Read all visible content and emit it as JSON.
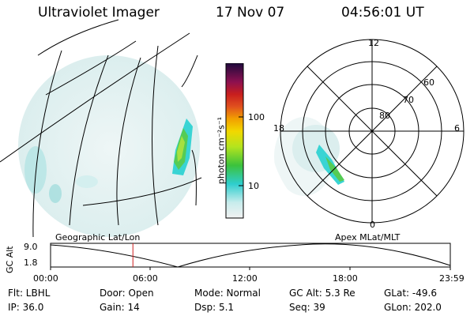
{
  "header": {
    "title": "Ultraviolet Imager",
    "date": "17 Nov 07",
    "time": "04:56:01 UT"
  },
  "colorbar": {
    "unit_label": "photon cm⁻²s⁻¹",
    "tick_100": "100",
    "tick_10": "10"
  },
  "polar": {
    "lat_labels": [
      "80",
      "70",
      "60"
    ],
    "mlt_labels": {
      "top": "12",
      "left": "18",
      "right": "6",
      "bottom": "0"
    }
  },
  "projection_labels": {
    "left": "Geographic Lat/Lon",
    "right": "Apex MLat/MLT"
  },
  "orbit_plot": {
    "axis_label": "GC Alt",
    "y_ticks": [
      "9.0",
      "1.8"
    ],
    "x_ticks": [
      "00:00",
      "06:00",
      "12:00",
      "18:00",
      "23:59"
    ],
    "current_time_fraction": 0.206
  },
  "status": {
    "flt": "Flt: LBHL",
    "ip": "IP: 36.0",
    "door": "Door: Open",
    "gain": "Gain: 14",
    "mode": "Mode: Normal",
    "dsp": "Dsp:    5.1",
    "gc_alt": "GC Alt: 5.3 Re",
    "seq": "Seq: 39",
    "glat": "GLat: -49.6",
    "glon": "GLon: 202.0"
  }
}
